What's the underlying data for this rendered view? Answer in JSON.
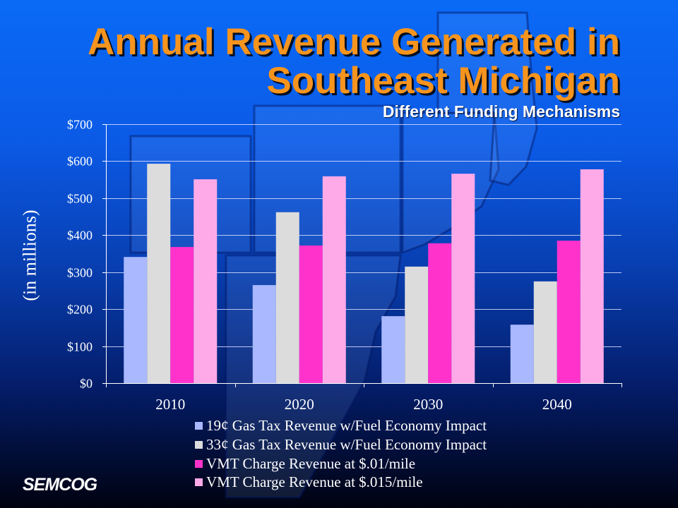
{
  "slide": {
    "logo_text": "SEMCOG"
  },
  "colors": {
    "title": "#F7941D",
    "subtitle": "#FFFFFF",
    "background_top": "#0A6AF6",
    "background_bottom": "#000210"
  },
  "chart_data": {
    "type": "bar",
    "title_lines": [
      "Annual Revenue Generated in",
      "Southeast Michigan"
    ],
    "subtitle": "Different Funding Mechanisms",
    "categories": [
      "2010",
      "2020",
      "2030",
      "2040"
    ],
    "series": [
      {
        "name": "19¢ Gas Tax Revenue w/Fuel Economy Impact",
        "color": "#A9B8FF",
        "values": [
          341,
          265,
          181,
          158
        ]
      },
      {
        "name": "33¢ Gas Tax Revenue w/Fuel Economy Impact",
        "color": "#DCDCDC",
        "values": [
          593,
          462,
          315,
          275
        ]
      },
      {
        "name": "VMT Charge Revenue at $.01/mile",
        "color": "#FF33CC",
        "values": [
          368,
          372,
          378,
          385
        ]
      },
      {
        "name": "VMT Charge Revenue at $.015/mile",
        "color": "#FFAAE8",
        "values": [
          551,
          559,
          566,
          578
        ]
      }
    ],
    "xlabel": "",
    "ylabel": "(in millions)",
    "ylim": [
      0,
      700
    ],
    "y_ticks": [
      0,
      100,
      200,
      300,
      400,
      500,
      600,
      700
    ],
    "y_tick_labels": [
      "$0",
      "$100",
      "$200",
      "$300",
      "$400",
      "$500",
      "$600",
      "$700"
    ],
    "grid": true,
    "legend": "bottom"
  }
}
